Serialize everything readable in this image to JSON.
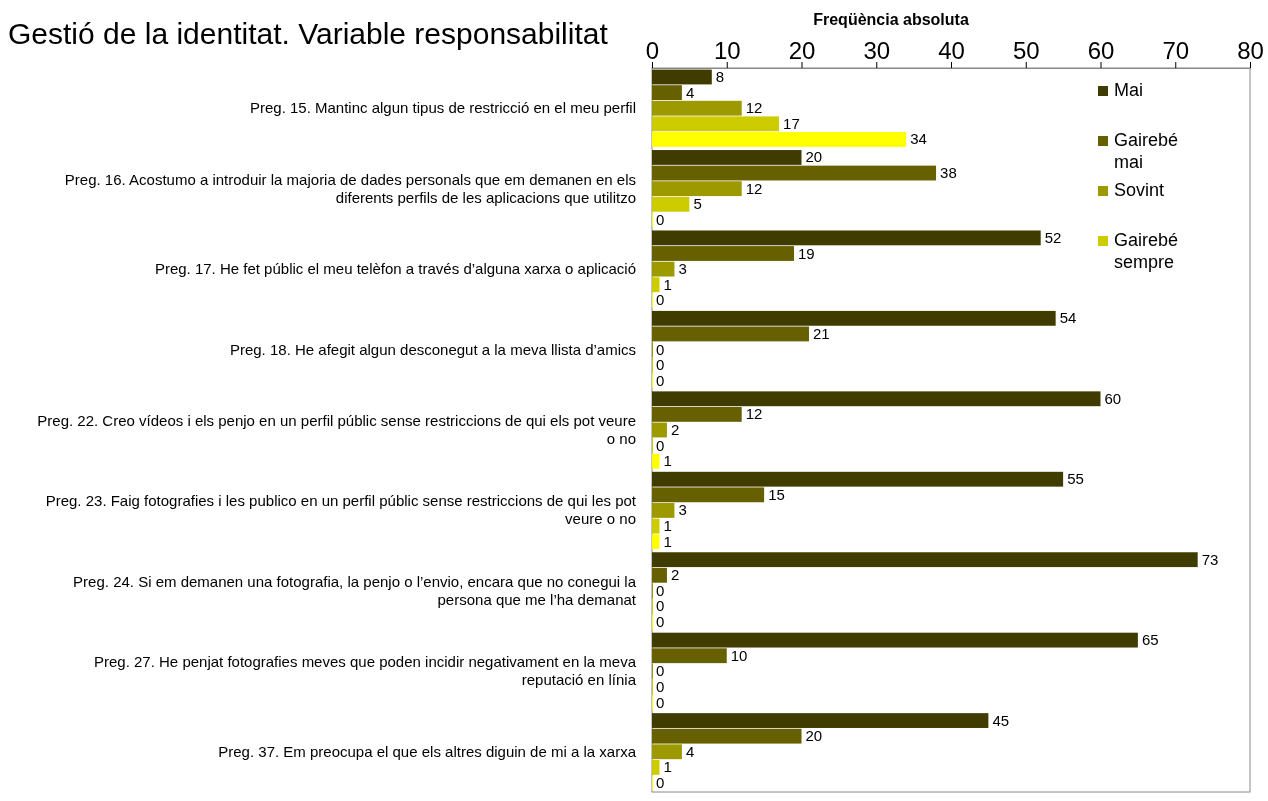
{
  "chart_data": {
    "type": "bar",
    "orientation": "horizontal",
    "title": "Gestió de la identitat. Variable responsabilitat",
    "xlabel": "Freqüència absoluta",
    "categories": [
      "Preg. 15. Mantinc algun tipus de restricció en el meu perfil",
      "Preg. 16. Acostumo a introduir la majoria de dades personals que em demanen en els diferents perfils de les aplicacions que utilitzo",
      "Preg. 17. He fet públic el meu telèfon a través d’alguna xarxa o aplicació",
      "Preg. 18. He afegit algun desconegut a la meva llista d’amics",
      "Preg. 22. Creo vídeos i els penjo en un perfil públic sense restriccions de qui els pot veure o no",
      "Preg. 23. Faig fotografies i les publico en un perfil públic sense restriccions de qui les pot veure o no",
      "Preg. 24. Si em demanen una fotografia, la penjo o l’envio, encara que no conegui la persona que me l’ha demanat",
      "Preg. 27. He penjat fotografies meves que poden incidir negativament en la meva reputació en línia",
      "Preg. 37. Em preocupa el que els altres diguin de mi a la xarxa"
    ],
    "series": [
      {
        "name": "Mai",
        "color": "#403c00",
        "values": [
          8,
          20,
          52,
          54,
          60,
          55,
          73,
          65,
          45
        ]
      },
      {
        "name": "Gairebé mai",
        "color": "#676000",
        "values": [
          4,
          38,
          19,
          21,
          12,
          15,
          2,
          10,
          20
        ]
      },
      {
        "name": "Sovint",
        "color": "#9c9a00",
        "values": [
          12,
          12,
          3,
          0,
          2,
          3,
          0,
          0,
          4
        ]
      },
      {
        "name": "Gairebé sempre",
        "color": "#cccc00",
        "values": [
          17,
          5,
          1,
          0,
          0,
          1,
          0,
          0,
          1
        ]
      },
      {
        "color": "#ffff00",
        "values": [
          34,
          0,
          0,
          0,
          1,
          1,
          0,
          0,
          0
        ]
      }
    ],
    "xlim": [
      0,
      80
    ],
    "xticks": [
      0,
      10,
      20,
      30,
      40,
      50,
      60,
      70,
      80
    ],
    "data_labels": true,
    "legend": "top right",
    "grid": false
  }
}
